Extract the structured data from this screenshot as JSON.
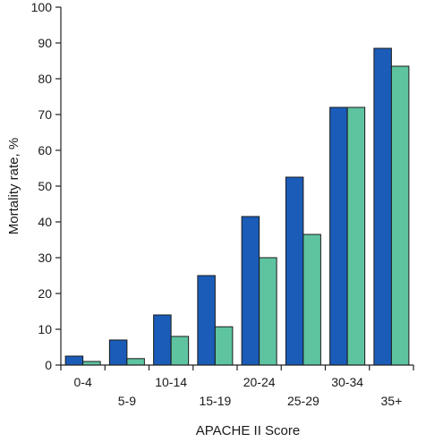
{
  "chart_data": {
    "type": "bar",
    "categories": [
      "0-4",
      "5-9",
      "10-14",
      "15-19",
      "20-24",
      "25-29",
      "30-34",
      "35+"
    ],
    "series": [
      {
        "values": [
          2.5,
          7,
          14,
          25,
          41.5,
          52.5,
          72,
          88.5
        ]
      },
      {
        "values": [
          1,
          1.8,
          8,
          10.7,
          30,
          36.5,
          72,
          83.5
        ]
      }
    ],
    "xlabel": "APACHE II Score",
    "ylabel": "Mortality rate, %",
    "ylim": [
      0,
      100
    ],
    "yticks": [
      0,
      10,
      20,
      30,
      40,
      50,
      60,
      70,
      80,
      90,
      100
    ],
    "grid": false,
    "legend": "none",
    "colors": {
      "series_1": "#1a5cb8",
      "series_2": "#5ec4a0",
      "axis": "#222222"
    }
  }
}
